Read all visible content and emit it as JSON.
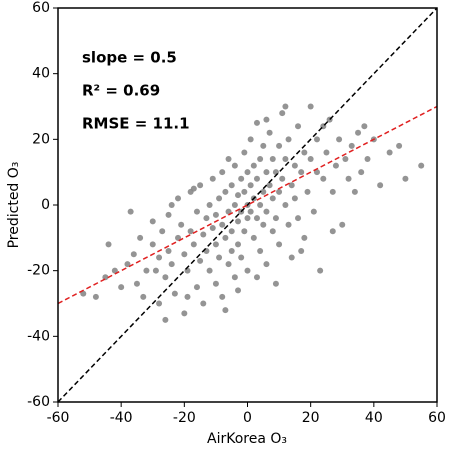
{
  "chart_data": {
    "type": "scatter",
    "xlabel": "AirKorea O₃",
    "ylabel": "Predicted O₃",
    "annotations": [
      "slope = 0.5",
      "R² = 0.69",
      "RMSE = 11.1"
    ],
    "color": "#888888",
    "x": [
      -48,
      -45,
      -42,
      -40,
      -38,
      -36,
      -35,
      -34,
      -32,
      -30,
      -30,
      -28,
      -28,
      -27,
      -26,
      -25,
      -25,
      -24,
      -23,
      -22,
      -22,
      -21,
      -20,
      -20,
      -19,
      -18,
      -18,
      -17,
      -16,
      -16,
      -15,
      -15,
      -14,
      -14,
      -13,
      -13,
      -12,
      -12,
      -11,
      -11,
      -10,
      -10,
      -10,
      -9,
      -9,
      -8,
      -8,
      -8,
      -7,
      -7,
      -6,
      -6,
      -6,
      -5,
      -5,
      -5,
      -4,
      -4,
      -4,
      -3,
      -3,
      -3,
      -2,
      -2,
      -2,
      -1,
      -1,
      -1,
      0,
      0,
      0,
      0,
      1,
      1,
      1,
      2,
      2,
      2,
      3,
      3,
      3,
      4,
      4,
      4,
      5,
      5,
      5,
      6,
      6,
      6,
      7,
      7,
      8,
      8,
      8,
      9,
      9,
      10,
      10,
      10,
      11,
      11,
      12,
      12,
      13,
      13,
      14,
      14,
      15,
      15,
      16,
      16,
      17,
      18,
      18,
      19,
      20,
      20,
      21,
      22,
      22,
      23,
      24,
      25,
      26,
      27,
      28,
      29,
      30,
      31,
      32,
      33,
      35,
      36,
      38,
      40,
      42,
      45,
      48,
      50,
      55,
      -52,
      -44,
      -37,
      -33,
      -29,
      -26,
      -24,
      -19,
      -17,
      -7,
      -3,
      3,
      6,
      9,
      12,
      17,
      24,
      27,
      34,
      37
    ],
    "values": [
      -28,
      -22,
      -20,
      -25,
      -18,
      -15,
      -24,
      -10,
      -20,
      -12,
      -5,
      -30,
      -16,
      -8,
      -22,
      -14,
      -3,
      -18,
      -27,
      -10,
      2,
      -6,
      -15,
      -33,
      -20,
      -8,
      4,
      -12,
      -25,
      -2,
      -17,
      6,
      -9,
      -30,
      -4,
      -14,
      0,
      -20,
      -7,
      8,
      -12,
      -3,
      -24,
      2,
      -16,
      -6,
      10,
      -28,
      -10,
      4,
      -2,
      -18,
      14,
      -8,
      6,
      -14,
      0,
      -22,
      12,
      -5,
      3,
      -12,
      8,
      -2,
      -16,
      4,
      -8,
      16,
      0,
      -4,
      10,
      -20,
      6,
      -2,
      20,
      2,
      -10,
      12,
      -4,
      8,
      25,
      0,
      14,
      -14,
      4,
      -6,
      18,
      10,
      -2,
      -18,
      6,
      22,
      2,
      -8,
      14,
      10,
      -4,
      4,
      18,
      -12,
      8,
      28,
      0,
      14,
      -6,
      20,
      6,
      -16,
      12,
      2,
      24,
      -4,
      10,
      16,
      -10,
      4,
      14,
      30,
      -2,
      10,
      20,
      -20,
      8,
      16,
      26,
      4,
      12,
      20,
      -6,
      14,
      8,
      18,
      22,
      10,
      14,
      20,
      6,
      16,
      18,
      8,
      12,
      -27,
      -12,
      -2,
      -28,
      -20,
      -35,
      0,
      -28,
      5,
      -32,
      -26,
      -22,
      26,
      -24,
      30,
      -14,
      24,
      -8,
      4,
      24
    ],
    "reference_lines": [
      {
        "slope": 1,
        "intercept": 0,
        "color": "#000000"
      },
      {
        "slope": 0.5,
        "intercept": 0,
        "color": "#e02020"
      }
    ],
    "xlim": [
      -60,
      60
    ],
    "ylim": [
      -60,
      60
    ],
    "xticks": [
      -60,
      -40,
      -20,
      0,
      20,
      40,
      60
    ],
    "yticks": [
      -60,
      -40,
      -20,
      0,
      20,
      40,
      60
    ]
  }
}
